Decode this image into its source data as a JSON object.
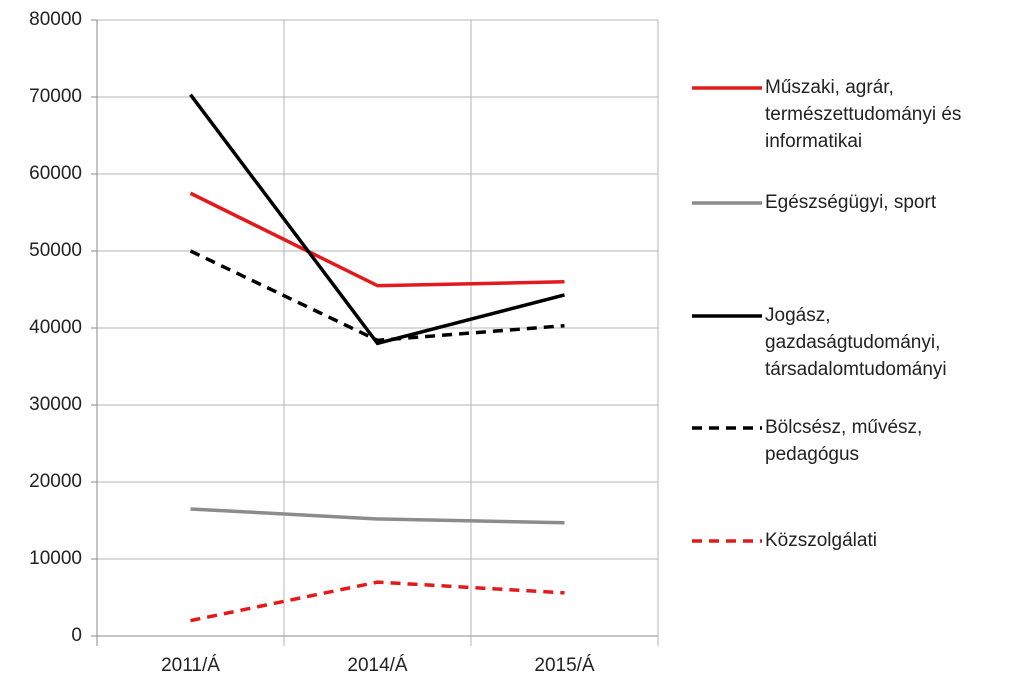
{
  "chart_data": {
    "type": "line",
    "categories": [
      "2011/Á",
      "2014/Á",
      "2015/Á"
    ],
    "ylim": [
      0,
      80000
    ],
    "yticks": [
      0,
      10000,
      20000,
      30000,
      40000,
      50000,
      60000,
      70000,
      80000
    ],
    "grid": true,
    "legend": "right",
    "series": [
      {
        "name": "Műszaki, agrár, természettudományi és informatikai",
        "color": "#e31a1c",
        "style": "solid",
        "values": [
          57500,
          45500,
          46000
        ]
      },
      {
        "name": "Egészségügyi, sport",
        "color": "#8c8c8c",
        "style": "solid",
        "values": [
          16500,
          15200,
          14700
        ]
      },
      {
        "name": "Jogász, gazdaságtudományi, társadalomtudományi",
        "color": "#000000",
        "style": "solid",
        "values": [
          70300,
          38000,
          44300
        ]
      },
      {
        "name": "Bölcsész, művész, pedagógus",
        "color": "#000000",
        "style": "dashed",
        "values": [
          50000,
          38400,
          40300
        ]
      },
      {
        "name": "Közszolgálati",
        "color": "#e31a1c",
        "style": "dashed",
        "values": [
          2000,
          7000,
          5600
        ]
      }
    ]
  }
}
